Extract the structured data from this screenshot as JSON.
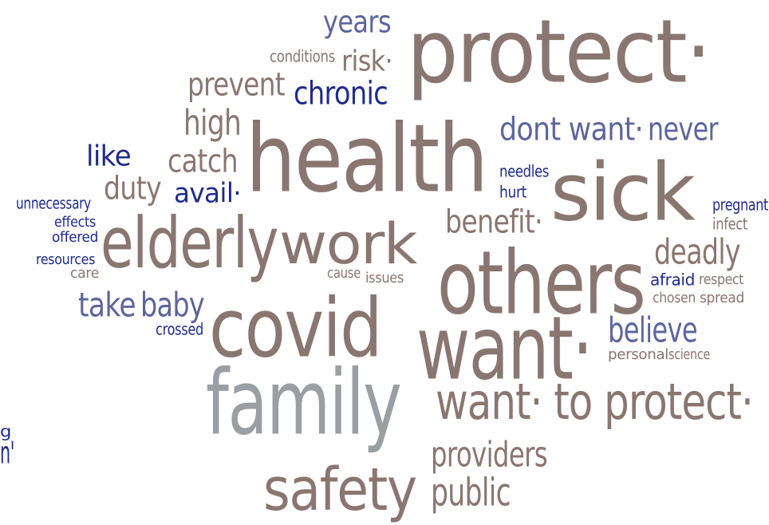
{
  "colors": {
    "brown": "#8a7671",
    "blue": "#5e659c",
    "navy": "#1f2a8c",
    "gray": "#9a9fa4"
  },
  "words": [
    {
      "text": "protect·",
      "color": "brown"
    },
    {
      "text": "years",
      "color": "blue"
    },
    {
      "text": "conditions",
      "color": "brown"
    },
    {
      "text": "risk·",
      "color": "brown"
    },
    {
      "text": "prevent",
      "color": "brown"
    },
    {
      "text": "chronic",
      "color": "navy"
    },
    {
      "text": "high",
      "color": "brown"
    },
    {
      "text": "health",
      "color": "brown"
    },
    {
      "text": "dont want·",
      "color": "blue"
    },
    {
      "text": "never",
      "color": "blue"
    },
    {
      "text": "like",
      "color": "navy"
    },
    {
      "text": "catch",
      "color": "brown"
    },
    {
      "text": "duty",
      "color": "brown"
    },
    {
      "text": "avail·",
      "color": "navy"
    },
    {
      "text": "needles",
      "color": "navy"
    },
    {
      "text": "hurt",
      "color": "navy"
    },
    {
      "text": "sick",
      "color": "brown"
    },
    {
      "text": "pregnant",
      "color": "navy"
    },
    {
      "text": "infect",
      "color": "brown"
    },
    {
      "text": "unnecessary",
      "color": "navy"
    },
    {
      "text": "effects",
      "color": "navy"
    },
    {
      "text": "offered",
      "color": "navy"
    },
    {
      "text": "resources",
      "color": "navy"
    },
    {
      "text": "care",
      "color": "brown"
    },
    {
      "text": "elderly",
      "color": "brown"
    },
    {
      "text": "work",
      "color": "brown"
    },
    {
      "text": "benefit·",
      "color": "brown"
    },
    {
      "text": "deadly",
      "color": "brown"
    },
    {
      "text": "cause",
      "color": "brown"
    },
    {
      "text": "issues",
      "color": "brown"
    },
    {
      "text": "others",
      "color": "brown"
    },
    {
      "text": "afraid",
      "color": "navy"
    },
    {
      "text": "respect",
      "color": "brown"
    },
    {
      "text": "chosen",
      "color": "brown"
    },
    {
      "text": "spread",
      "color": "brown"
    },
    {
      "text": "take",
      "color": "blue"
    },
    {
      "text": "baby",
      "color": "blue"
    },
    {
      "text": "crossed",
      "color": "navy"
    },
    {
      "text": "covid",
      "color": "brown"
    },
    {
      "text": "want·",
      "color": "brown"
    },
    {
      "text": "believe",
      "color": "blue"
    },
    {
      "text": "personal",
      "color": "brown"
    },
    {
      "text": "science",
      "color": "brown"
    },
    {
      "text": "family",
      "color": "gray"
    },
    {
      "text": "want· to protect·",
      "color": "brown"
    },
    {
      "text": "providers",
      "color": "brown"
    },
    {
      "text": "safety",
      "color": "brown"
    },
    {
      "text": "public",
      "color": "brown"
    },
    {
      "text": "g",
      "color": "navy"
    },
    {
      "text": "n'",
      "color": "navy"
    }
  ]
}
